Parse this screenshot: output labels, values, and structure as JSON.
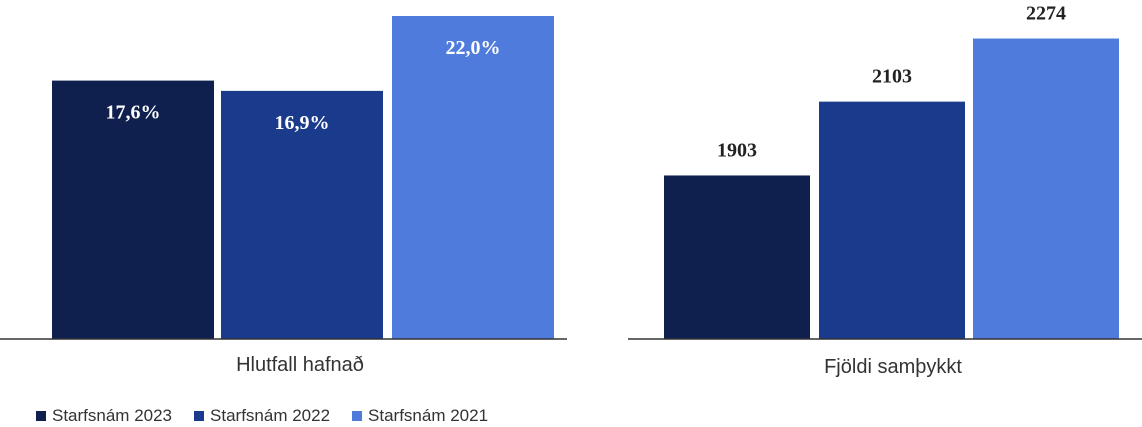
{
  "colors": {
    "series_2023": "#0f1f4e",
    "series_2022": "#1a3a8c",
    "series_2021": "#4f7cdc",
    "axis": "#333333"
  },
  "legend": [
    {
      "label": "Starfsnám 2023"
    },
    {
      "label": "Starfsnám 2022"
    },
    {
      "label": "Starfsnám 2021"
    }
  ],
  "chart_data": [
    {
      "type": "bar",
      "category_label": "Hlutfall hafnað",
      "series": [
        {
          "name": "Starfsnám 2023",
          "value": 17.6,
          "label": "17,6%"
        },
        {
          "name": "Starfsnám 2022",
          "value": 16.9,
          "label": "16,9%"
        },
        {
          "name": "Starfsnám 2021",
          "value": 22.0,
          "label": "22,0%"
        }
      ],
      "ylim": [
        0,
        22.0
      ],
      "data_label_position": "inside-top"
    },
    {
      "type": "bar",
      "category_label": "Fjöldi samþykkt",
      "series": [
        {
          "name": "Starfsnám 2023",
          "value": 1903,
          "label": "1903"
        },
        {
          "name": "Starfsnám 2022",
          "value": 2103,
          "label": "2103"
        },
        {
          "name": "Starfsnám 2021",
          "value": 2274,
          "label": "2274"
        }
      ],
      "ylim": [
        1460,
        2335
      ],
      "data_label_position": "above"
    }
  ]
}
